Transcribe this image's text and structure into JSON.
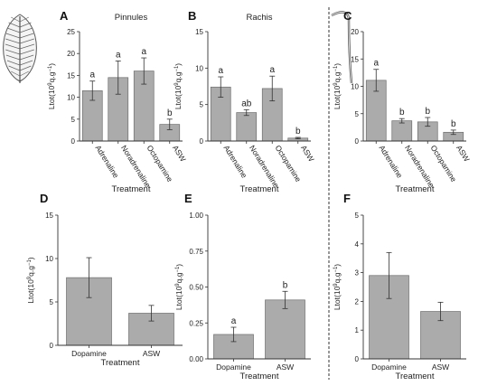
{
  "figure": {
    "colors": {
      "bar": "#ababab",
      "bar_stroke": "#6f6f6f",
      "axis": "#333333",
      "divider": "#555555"
    },
    "xlabel": "Treatment",
    "ylabel_parts": {
      "main": "Ltot(10",
      "exp": "9",
      "mid": "q.g",
      "exp2": "−1",
      "end": ")"
    },
    "icons": {
      "left": "pinnule-frond-icon",
      "right": "rachis-stem-icon"
    }
  },
  "chart_data": [
    {
      "panel": "A",
      "type": "bar",
      "title": "Pinnules",
      "xlabel": "Treatment",
      "categories": [
        "Adrenaline",
        "Noradrenaline",
        "Octopamine",
        "ASW"
      ],
      "values": [
        11.5,
        14.5,
        16.0,
        3.8
      ],
      "errors": [
        2.2,
        3.8,
        3.0,
        1.2
      ],
      "letters": [
        "a",
        "a",
        "a",
        "b"
      ],
      "ylim": [
        0,
        25
      ],
      "yticks": [
        0,
        5,
        10,
        15,
        20,
        25
      ],
      "ytick_labels": [
        "0",
        "5",
        "10",
        "15",
        "20",
        "25"
      ]
    },
    {
      "panel": "B",
      "type": "bar",
      "title": "Rachis",
      "xlabel": "Treatment",
      "categories": [
        "Adrenaline",
        "Noradrenaline",
        "Octopamine",
        "ASW"
      ],
      "values": [
        7.4,
        3.9,
        7.2,
        0.4
      ],
      "errors": [
        1.4,
        0.4,
        1.7,
        0.1
      ],
      "letters": [
        "a",
        "ab",
        "a",
        "b"
      ],
      "ylim": [
        0,
        15
      ],
      "yticks": [
        0,
        5,
        10,
        15
      ],
      "ytick_labels": [
        "0",
        "5",
        "10",
        "15"
      ]
    },
    {
      "panel": "C",
      "type": "bar",
      "title": "",
      "xlabel": "Treatment",
      "categories": [
        "Adrenaline",
        "Noradrenaline",
        "Octopamine",
        "ASW"
      ],
      "values": [
        11.1,
        3.7,
        3.5,
        1.6
      ],
      "errors": [
        2.0,
        0.4,
        0.8,
        0.4
      ],
      "letters": [
        "a",
        "b",
        "b",
        "b"
      ],
      "ylim": [
        0,
        20
      ],
      "yticks": [
        0,
        5,
        10,
        15,
        20
      ],
      "ytick_labels": [
        "0",
        "5",
        "10",
        "15",
        "20"
      ]
    },
    {
      "panel": "D",
      "type": "bar",
      "title": "",
      "xlabel": "Treatment",
      "categories": [
        "Dopamine",
        "ASW"
      ],
      "values": [
        7.8,
        3.7
      ],
      "errors": [
        2.3,
        0.9
      ],
      "letters": [
        "",
        ""
      ],
      "ylim": [
        0,
        15
      ],
      "yticks": [
        0,
        5,
        10,
        15
      ],
      "ytick_labels": [
        "0",
        "5",
        "10",
        "15"
      ]
    },
    {
      "panel": "E",
      "type": "bar",
      "title": "",
      "xlabel": "Treatment",
      "categories": [
        "Dopamine",
        "ASW"
      ],
      "values": [
        0.17,
        0.41
      ],
      "errors": [
        0.05,
        0.06
      ],
      "letters": [
        "a",
        "b"
      ],
      "ylim": [
        0,
        1.0
      ],
      "yticks": [
        0,
        0.25,
        0.5,
        0.75,
        1.0
      ],
      "ytick_labels": [
        "0.00",
        "0.25",
        "0.50",
        "0.75",
        "1.00"
      ]
    },
    {
      "panel": "F",
      "type": "bar",
      "title": "",
      "xlabel": "Treatment",
      "categories": [
        "Dopamine",
        "ASW"
      ],
      "values": [
        2.9,
        1.65
      ],
      "errors": [
        0.8,
        0.32
      ],
      "letters": [
        "",
        ""
      ],
      "ylim": [
        0,
        5
      ],
      "yticks": [
        0,
        1,
        2,
        3,
        4,
        5
      ],
      "ytick_labels": [
        "0",
        "1",
        "2",
        "3",
        "4",
        "5"
      ]
    }
  ]
}
